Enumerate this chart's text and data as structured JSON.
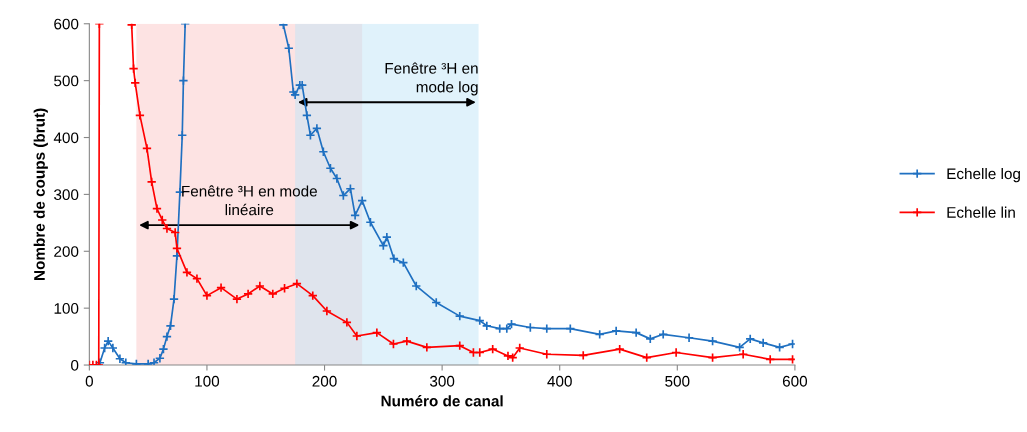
{
  "chart_data": {
    "type": "line",
    "xlabel": "Numéro de canal",
    "ylabel": "Nombre de coups (brut)",
    "xlim": [
      0,
      600
    ],
    "ylim": [
      0,
      600
    ],
    "xticks": [
      0,
      100,
      200,
      300,
      400,
      500,
      600
    ],
    "yticks": [
      0,
      100,
      200,
      300,
      400,
      500,
      600
    ],
    "grid": false,
    "legend": "right",
    "marker": "cross",
    "bands": [
      {
        "axis": "x",
        "from": 40,
        "to": 232,
        "label": "Fenêtre ³H en mode\nlinéaire",
        "color": "#fcc8c8"
      },
      {
        "axis": "x",
        "from": 175,
        "to": 331,
        "label": "Fenêtre ³H en\nmode log",
        "color": "#c2e6f8"
      }
    ],
    "series": [
      {
        "name": "Echelle log",
        "color": "#1f70c1",
        "x": [
          9,
          13,
          16,
          20,
          26,
          31,
          40,
          50,
          55,
          60,
          63,
          66,
          69,
          72,
          74.5,
          77,
          79,
          80,
          81.5,
          null,
          165,
          169.6,
          173.5,
          175,
          179,
          181,
          185,
          188,
          193.5,
          199,
          205,
          210.5,
          216,
          222,
          226,
          232,
          239,
          250,
          253,
          259,
          267,
          278,
          295,
          315,
          332,
          338,
          349,
          355,
          359,
          375,
          389,
          409,
          434,
          448,
          465,
          477,
          488,
          510,
          530,
          553,
          562,
          573,
          587,
          598
        ],
        "values": [
          4,
          30,
          42,
          30,
          11,
          4,
          2,
          2,
          4,
          12,
          28,
          50,
          69,
          116,
          192,
          304,
          404,
          500,
          600,
          null,
          598,
          557,
          480,
          475,
          492,
          492,
          439,
          404,
          416,
          375,
          346,
          328,
          298,
          310,
          263,
          289,
          251,
          210,
          225,
          187,
          180,
          139,
          110,
          86,
          78,
          69,
          64,
          64,
          72,
          66,
          64,
          64,
          54,
          60,
          57,
          46,
          54,
          48,
          42,
          31,
          46,
          39,
          31,
          37
        ]
      },
      {
        "name": "Echelle lin",
        "color": "#ff0000",
        "x": [
          0,
          3,
          6,
          8,
          8.5,
          null,
          36,
          37.6,
          39,
          43,
          49,
          53,
          57.5,
          62,
          66,
          73,
          74.5,
          83,
          91.5,
          100,
          112,
          125.5,
          135,
          145,
          156,
          166,
          176.5,
          190,
          202,
          219,
          227.5,
          244.5,
          258.6,
          270,
          287,
          315,
          326.6,
          332,
          343,
          356,
          360,
          366,
          389,
          420,
          451,
          474,
          499,
          530,
          556,
          579,
          598
        ],
        "values": [
          0,
          0,
          0,
          0,
          600,
          null,
          598,
          521,
          496,
          439,
          381,
          322,
          275,
          255,
          240,
          233,
          205,
          163,
          152,
          122,
          136,
          116,
          125,
          139,
          125,
          135,
          143,
          122,
          95,
          75,
          51,
          57,
          37,
          42,
          31,
          34,
          22,
          22,
          28,
          16,
          13,
          30,
          19,
          17,
          28,
          13,
          22,
          13,
          19,
          10,
          10
        ]
      }
    ]
  }
}
